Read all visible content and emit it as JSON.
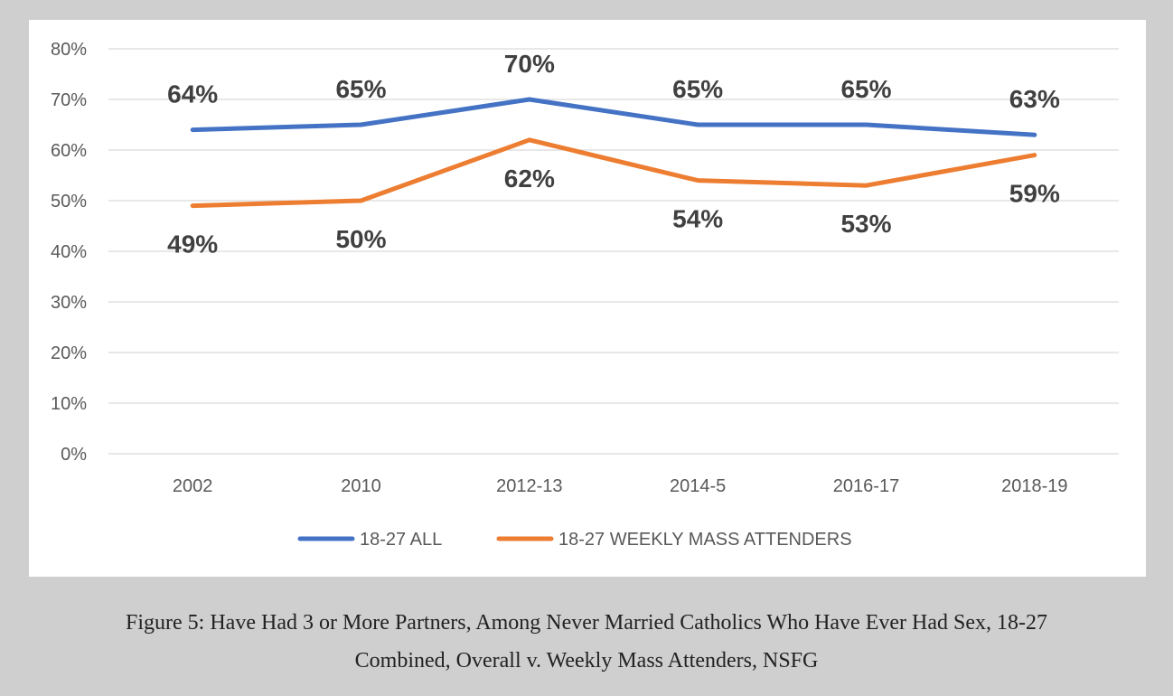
{
  "caption": {
    "line1": "Figure 5: Have Had 3 or More Partners, Among Never Married Catholics Who Have Ever Had Sex, 18-27",
    "line2": "Combined, Overall v. Weekly Mass Attenders, NSFG"
  },
  "chart_data": {
    "type": "line",
    "title": "",
    "xlabel": "",
    "ylabel": "",
    "categories": [
      "2002",
      "2010",
      "2012-13",
      "2014-5",
      "2016-17",
      "2018-19"
    ],
    "ylim": [
      0,
      80
    ],
    "yticks": [
      "0%",
      "10%",
      "20%",
      "30%",
      "40%",
      "50%",
      "60%",
      "70%",
      "80%"
    ],
    "grid": true,
    "legend_position": "bottom",
    "series": [
      {
        "name": "18-27 ALL",
        "color": "#4472c4",
        "values": [
          64,
          65,
          70,
          65,
          65,
          63
        ],
        "labels": [
          "64%",
          "65%",
          "70%",
          "65%",
          "65%",
          "63%"
        ],
        "label_position": "above"
      },
      {
        "name": "18-27 WEEKLY MASS ATTENDERS",
        "color": "#ed7d31",
        "values": [
          49,
          50,
          62,
          54,
          53,
          59
        ],
        "labels": [
          "49%",
          "50%",
          "62%",
          "54%",
          "53%",
          "59%"
        ],
        "label_position": "below"
      }
    ]
  }
}
